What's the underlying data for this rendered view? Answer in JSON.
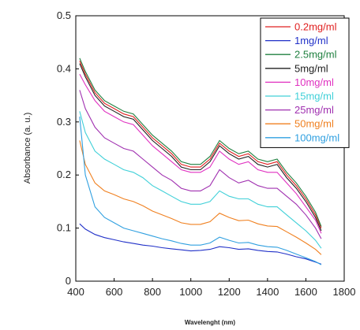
{
  "chart_data": {
    "type": "line",
    "xlabel": "Wavelenght (nm)",
    "ylabel": "Absorbance (a. u.)",
    "xlim": [
      400,
      1800
    ],
    "ylim": [
      0,
      0.5
    ],
    "x_ticks": [
      400,
      600,
      800,
      1000,
      1200,
      1400,
      1600,
      1800
    ],
    "y_ticks": [
      0,
      0.1,
      0.2,
      0.3,
      0.4,
      0.5
    ],
    "y_tick_labels": [
      "0",
      "0.1",
      "0.2",
      "0.3",
      "0.4",
      "0.5"
    ],
    "grid": false,
    "legend_position": "top-right",
    "x": [
      420,
      450,
      500,
      550,
      600,
      650,
      700,
      750,
      800,
      850,
      900,
      950,
      1000,
      1050,
      1100,
      1150,
      1200,
      1250,
      1300,
      1350,
      1400,
      1450,
      1500,
      1550,
      1600,
      1650,
      1680
    ],
    "series": [
      {
        "name": "0.2mg/ml",
        "color": "#e02020",
        "values": [
          0.415,
          0.39,
          0.355,
          0.335,
          0.325,
          0.315,
          0.31,
          0.29,
          0.27,
          0.255,
          0.24,
          0.22,
          0.215,
          0.215,
          0.23,
          0.26,
          0.245,
          0.235,
          0.24,
          0.225,
          0.22,
          0.225,
          0.2,
          0.18,
          0.155,
          0.125,
          0.1
        ]
      },
      {
        "name": "1mg/ml",
        "color": "#2030c8",
        "values": [
          0.108,
          0.098,
          0.088,
          0.082,
          0.078,
          0.074,
          0.071,
          0.068,
          0.066,
          0.063,
          0.061,
          0.059,
          0.057,
          0.058,
          0.06,
          0.065,
          0.063,
          0.06,
          0.061,
          0.058,
          0.056,
          0.055,
          0.051,
          0.046,
          0.042,
          0.036,
          0.032
        ]
      },
      {
        "name": "2.5mg/ml",
        "color": "#208040",
        "values": [
          0.42,
          0.395,
          0.36,
          0.34,
          0.33,
          0.32,
          0.315,
          0.295,
          0.275,
          0.26,
          0.245,
          0.225,
          0.22,
          0.22,
          0.235,
          0.265,
          0.25,
          0.24,
          0.245,
          0.23,
          0.225,
          0.23,
          0.205,
          0.185,
          0.16,
          0.13,
          0.103
        ]
      },
      {
        "name": "5mg/ml",
        "color": "#202020",
        "values": [
          0.41,
          0.385,
          0.35,
          0.33,
          0.32,
          0.31,
          0.305,
          0.285,
          0.265,
          0.25,
          0.235,
          0.215,
          0.21,
          0.21,
          0.225,
          0.255,
          0.24,
          0.23,
          0.235,
          0.22,
          0.215,
          0.22,
          0.195,
          0.175,
          0.15,
          0.12,
          0.095
        ]
      },
      {
        "name": "10mg/ml",
        "color": "#e030c0",
        "values": [
          0.39,
          0.37,
          0.34,
          0.32,
          0.31,
          0.3,
          0.295,
          0.275,
          0.255,
          0.24,
          0.225,
          0.21,
          0.205,
          0.205,
          0.215,
          0.245,
          0.23,
          0.22,
          0.225,
          0.21,
          0.205,
          0.205,
          0.185,
          0.165,
          0.14,
          0.115,
          0.09
        ]
      },
      {
        "name": "15mg/ml",
        "color": "#40d0d8",
        "values": [
          0.32,
          0.28,
          0.245,
          0.23,
          0.22,
          0.21,
          0.205,
          0.195,
          0.18,
          0.17,
          0.16,
          0.15,
          0.145,
          0.145,
          0.15,
          0.17,
          0.16,
          0.155,
          0.155,
          0.145,
          0.14,
          0.14,
          0.125,
          0.11,
          0.095,
          0.077,
          0.062
        ]
      },
      {
        "name": "25mg/ml",
        "color": "#a030b0",
        "values": [
          0.36,
          0.325,
          0.29,
          0.27,
          0.26,
          0.25,
          0.245,
          0.23,
          0.215,
          0.2,
          0.19,
          0.175,
          0.17,
          0.17,
          0.18,
          0.21,
          0.195,
          0.185,
          0.19,
          0.18,
          0.175,
          0.175,
          0.16,
          0.145,
          0.125,
          0.1,
          0.08
        ]
      },
      {
        "name": "50mg/ml",
        "color": "#f08020",
        "values": [
          0.265,
          0.22,
          0.185,
          0.17,
          0.163,
          0.155,
          0.15,
          0.142,
          0.132,
          0.125,
          0.118,
          0.11,
          0.107,
          0.107,
          0.112,
          0.128,
          0.12,
          0.114,
          0.115,
          0.108,
          0.104,
          0.103,
          0.093,
          0.083,
          0.072,
          0.06,
          0.05
        ]
      },
      {
        "name": "100mg/ml",
        "color": "#30a0e0",
        "values": [
          0.31,
          0.2,
          0.14,
          0.12,
          0.11,
          0.1,
          0.095,
          0.09,
          0.085,
          0.08,
          0.076,
          0.071,
          0.068,
          0.068,
          0.072,
          0.083,
          0.077,
          0.072,
          0.073,
          0.068,
          0.065,
          0.064,
          0.058,
          0.051,
          0.044,
          0.037,
          0.031
        ]
      }
    ]
  }
}
